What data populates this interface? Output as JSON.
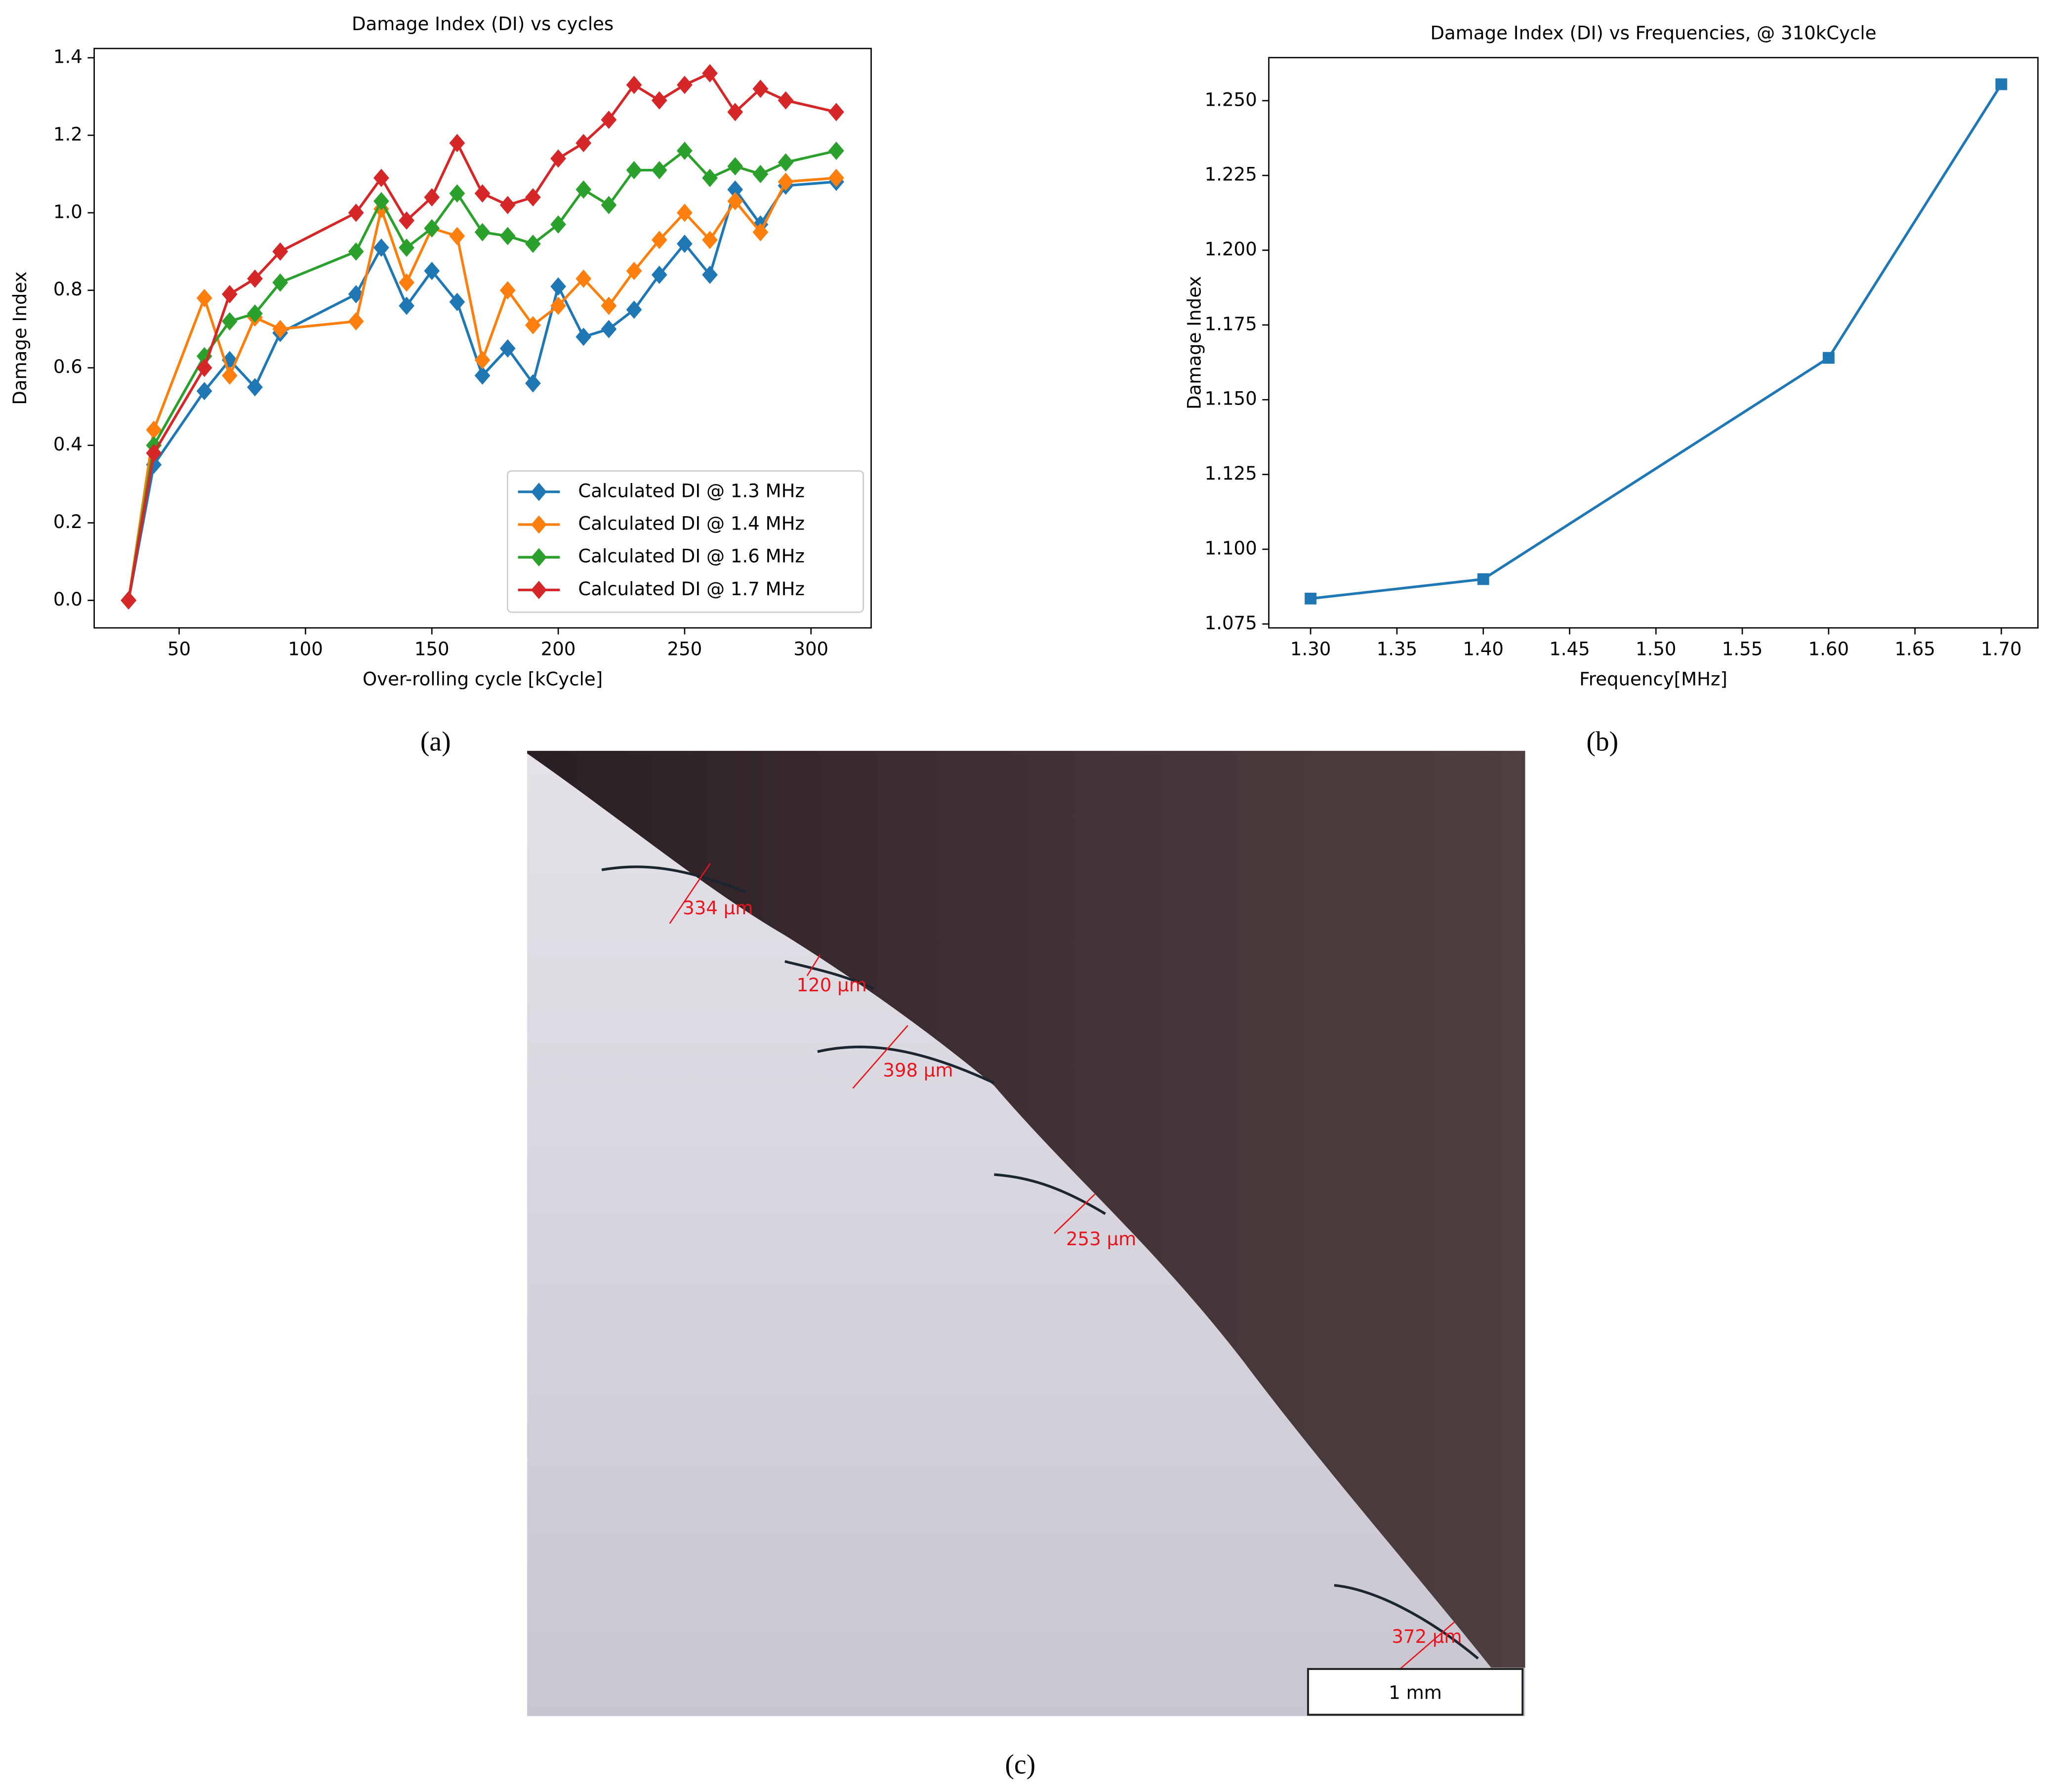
{
  "chart_data": [
    {
      "type": "line",
      "title": "Damage Index (DI) vs cycles",
      "xlabel": "Over-rolling cycle [kCycle]",
      "ylabel": "Damage Index",
      "x": [
        30,
        40,
        60,
        70,
        80,
        90,
        120,
        130,
        140,
        150,
        160,
        170,
        180,
        190,
        200,
        210,
        220,
        230,
        240,
        250,
        260,
        270,
        280,
        290,
        310
      ],
      "series": [
        {
          "name": "Calculated DI @ 1.3 MHz",
          "color": "#1f77b4",
          "values": [
            0,
            0.35,
            0.54,
            0.62,
            0.55,
            0.69,
            0.79,
            0.91,
            0.76,
            0.85,
            0.77,
            0.58,
            0.65,
            0.56,
            0.81,
            0.68,
            0.7,
            0.75,
            0.84,
            0.92,
            0.84,
            1.06,
            0.97,
            1.07,
            1.08
          ]
        },
        {
          "name": "Calculated DI @ 1.4 MHz",
          "color": "#ff7f0e",
          "values": [
            0,
            0.44,
            0.78,
            0.58,
            0.73,
            0.7,
            0.72,
            1.01,
            0.82,
            0.96,
            0.94,
            0.62,
            0.8,
            0.71,
            0.76,
            0.83,
            0.76,
            0.85,
            0.93,
            1.0,
            0.93,
            1.03,
            0.95,
            1.08,
            1.09
          ]
        },
        {
          "name": "Calculated DI @ 1.6 MHz",
          "color": "#2ca02c",
          "values": [
            0,
            0.4,
            0.63,
            0.72,
            0.74,
            0.82,
            0.9,
            1.03,
            0.91,
            0.96,
            1.05,
            0.95,
            0.94,
            0.92,
            0.97,
            1.06,
            1.02,
            1.11,
            1.11,
            1.16,
            1.09,
            1.12,
            1.1,
            1.13,
            1.16
          ]
        },
        {
          "name": "Calculated DI @ 1.7 MHz",
          "color": "#d62728",
          "values": [
            0,
            0.38,
            0.6,
            0.79,
            0.83,
            0.9,
            1.0,
            1.09,
            0.98,
            1.04,
            1.18,
            1.05,
            1.02,
            1.04,
            1.14,
            1.18,
            1.24,
            1.33,
            1.29,
            1.33,
            1.36,
            1.26,
            1.32,
            1.29,
            1.26
          ]
        }
      ],
      "marker": "diamond",
      "legend": "lower right",
      "xlim": [
        16.4,
        323.8
      ],
      "ylim": [
        -0.071,
        1.424
      ],
      "xticks": [
        50,
        100,
        150,
        200,
        250,
        300
      ],
      "yticks": [
        {
          "value": 0,
          "label": "0.0"
        },
        0.2,
        0.4,
        0.6,
        0.8,
        {
          "value": 1,
          "label": "1.0"
        },
        1.2,
        1.4
      ]
    },
    {
      "type": "line",
      "title": "Damage Index (DI) vs Frequencies, @ 310kCycle",
      "xlabel": "Frequency[MHz]",
      "ylabel": "Damage Index",
      "x": [
        1.3,
        1.4,
        1.6,
        1.7
      ],
      "values": [
        1.0835,
        1.09,
        1.164,
        1.2555
      ],
      "color": "#1f77b4",
      "marker": "square",
      "xlim": [
        1.2758,
        1.7212
      ],
      "ylim": [
        1.0737,
        1.2644
      ],
      "xticks": [
        {
          "value": 1.3,
          "label": "1.30"
        },
        1.35,
        {
          "value": 1.4,
          "label": "1.40"
        },
        1.45,
        {
          "value": 1.5,
          "label": "1.50"
        },
        1.55,
        {
          "value": 1.6,
          "label": "1.60"
        },
        1.65,
        {
          "value": 1.7,
          "label": "1.70"
        }
      ],
      "yticks": [
        1.075,
        {
          "value": 1.1,
          "label": "1.100"
        },
        1.125,
        {
          "value": 1.15,
          "label": "1.150"
        },
        1.175,
        {
          "value": 1.2,
          "label": "1.200"
        },
        1.225,
        {
          "value": 1.25,
          "label": "1.250"
        }
      ]
    }
  ],
  "panel_labels": [
    "(a)",
    "(b)",
    "(c)"
  ],
  "micrograph": {
    "measurements": [
      "334 μm",
      "120 μm",
      "398 μm",
      "253 μm",
      "372 μm"
    ],
    "scale_bar": "1 mm"
  }
}
